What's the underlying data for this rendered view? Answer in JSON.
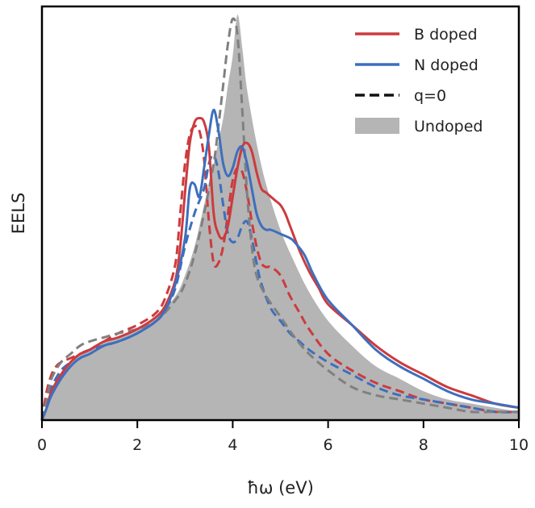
{
  "chart_data": {
    "type": "line",
    "title": "",
    "xlabel": "ħω (eV)",
    "ylabel": "EELS",
    "xlim": [
      0,
      10
    ],
    "ylim": [
      0,
      1
    ],
    "y_ticks_shown": false,
    "grid": false,
    "legend_position": "top-right",
    "x_ticks": [
      "0",
      "2",
      "4",
      "6",
      "8",
      "10"
    ],
    "colors": {
      "b_doped": "#cc3b3e",
      "n_doped": "#3d6fbe",
      "undoped": "#b5b5b5",
      "q0": "#555555"
    },
    "legend": [
      {
        "label": "B doped",
        "style": "solid",
        "color": "#cc3b3e"
      },
      {
        "label": "N doped",
        "style": "solid",
        "color": "#3d6fbe"
      },
      {
        "label": "q=0",
        "style": "dashed",
        "color": "#111111"
      },
      {
        "label": "Undoped",
        "style": "fill",
        "color": "#b5b5b5"
      }
    ],
    "series": [
      {
        "name": "Undoped",
        "kind": "fill",
        "color": "#b5b5b5",
        "x": [
          0,
          0.1,
          0.2,
          0.4,
          0.6,
          0.8,
          1.0,
          1.3,
          1.6,
          2.0,
          2.4,
          2.8,
          3.0,
          3.2,
          3.4,
          3.6,
          3.8,
          3.9,
          4.0,
          4.1,
          4.2,
          4.3,
          4.5,
          4.7,
          5.0,
          5.3,
          5.6,
          6.0,
          6.5,
          7.0,
          7.5,
          8.0,
          8.5,
          9.0,
          9.5,
          10.0
        ],
        "y": [
          0,
          0.03,
          0.07,
          0.11,
          0.14,
          0.16,
          0.17,
          0.19,
          0.2,
          0.22,
          0.25,
          0.3,
          0.35,
          0.42,
          0.52,
          0.62,
          0.73,
          0.81,
          0.88,
          0.98,
          0.9,
          0.8,
          0.67,
          0.57,
          0.46,
          0.38,
          0.31,
          0.24,
          0.18,
          0.13,
          0.1,
          0.07,
          0.05,
          0.04,
          0.03,
          0.02
        ]
      },
      {
        "name": "B doped",
        "kind": "line",
        "style": "solid",
        "color": "#cc3b3e",
        "x": [
          0,
          0.1,
          0.2,
          0.4,
          0.6,
          0.8,
          1.0,
          1.3,
          1.6,
          2.0,
          2.4,
          2.6,
          2.8,
          2.9,
          3.0,
          3.1,
          3.2,
          3.3,
          3.4,
          3.5,
          3.6,
          3.7,
          3.8,
          3.9,
          4.0,
          4.1,
          4.2,
          4.3,
          4.4,
          4.5,
          4.6,
          4.7,
          4.8,
          4.9,
          5.0,
          5.1,
          5.2,
          5.4,
          5.6,
          5.8,
          6.0,
          6.5,
          7.0,
          7.5,
          8.0,
          8.5,
          9.0,
          9.5,
          10.0
        ],
        "y": [
          0,
          0.03,
          0.07,
          0.11,
          0.14,
          0.16,
          0.17,
          0.19,
          0.2,
          0.22,
          0.25,
          0.28,
          0.34,
          0.42,
          0.55,
          0.67,
          0.72,
          0.73,
          0.72,
          0.66,
          0.5,
          0.45,
          0.44,
          0.47,
          0.54,
          0.61,
          0.66,
          0.67,
          0.65,
          0.6,
          0.56,
          0.55,
          0.54,
          0.53,
          0.52,
          0.5,
          0.47,
          0.41,
          0.36,
          0.32,
          0.28,
          0.23,
          0.18,
          0.14,
          0.11,
          0.08,
          0.06,
          0.04,
          0.03
        ]
      },
      {
        "name": "N doped",
        "kind": "line",
        "style": "solid",
        "color": "#3d6fbe",
        "x": [
          0,
          0.1,
          0.2,
          0.4,
          0.6,
          0.8,
          1.0,
          1.3,
          1.6,
          2.0,
          2.4,
          2.6,
          2.8,
          3.0,
          3.1,
          3.2,
          3.3,
          3.4,
          3.5,
          3.6,
          3.7,
          3.8,
          3.9,
          4.0,
          4.1,
          4.2,
          4.3,
          4.4,
          4.5,
          4.6,
          4.7,
          4.8,
          5.0,
          5.2,
          5.3,
          5.5,
          5.7,
          6.0,
          6.5,
          7.0,
          7.5,
          8.0,
          8.5,
          9.0,
          9.5,
          10.0
        ],
        "y": [
          0,
          0.03,
          0.06,
          0.1,
          0.13,
          0.15,
          0.16,
          0.18,
          0.19,
          0.21,
          0.24,
          0.27,
          0.33,
          0.44,
          0.56,
          0.57,
          0.54,
          0.61,
          0.69,
          0.75,
          0.7,
          0.62,
          0.59,
          0.61,
          0.65,
          0.66,
          0.62,
          0.56,
          0.5,
          0.47,
          0.46,
          0.46,
          0.45,
          0.44,
          0.43,
          0.4,
          0.35,
          0.29,
          0.23,
          0.17,
          0.13,
          0.1,
          0.07,
          0.05,
          0.04,
          0.03
        ]
      },
      {
        "name": "B doped q=0",
        "kind": "line",
        "style": "dashed",
        "color": "#cc3b3e",
        "x": [
          0,
          0.1,
          0.2,
          0.3,
          0.4,
          0.6,
          0.8,
          1.0,
          1.3,
          1.6,
          2.0,
          2.4,
          2.6,
          2.8,
          2.9,
          3.0,
          3.1,
          3.2,
          3.3,
          3.4,
          3.5,
          3.6,
          3.7,
          3.8,
          3.9,
          4.0,
          4.1,
          4.2,
          4.3,
          4.4,
          4.5,
          4.6,
          4.7,
          4.8,
          5.0,
          5.2,
          5.4,
          5.6,
          6.0,
          6.5,
          7.0,
          7.5,
          8.0,
          8.5,
          9.0,
          9.5,
          10.0
        ],
        "y": [
          0,
          0.07,
          0.11,
          0.13,
          0.14,
          0.15,
          0.16,
          0.17,
          0.19,
          0.21,
          0.23,
          0.26,
          0.3,
          0.38,
          0.5,
          0.62,
          0.69,
          0.71,
          0.7,
          0.63,
          0.48,
          0.38,
          0.38,
          0.42,
          0.5,
          0.58,
          0.61,
          0.6,
          0.55,
          0.48,
          0.42,
          0.38,
          0.37,
          0.37,
          0.35,
          0.3,
          0.26,
          0.22,
          0.16,
          0.12,
          0.09,
          0.07,
          0.05,
          0.04,
          0.03,
          0.02,
          0.02
        ]
      },
      {
        "name": "N doped q=0",
        "kind": "line",
        "style": "dashed",
        "color": "#3d6fbe",
        "x": [
          0,
          0.1,
          0.2,
          0.4,
          0.6,
          0.8,
          1.0,
          1.3,
          1.6,
          2.0,
          2.4,
          2.6,
          2.8,
          3.0,
          3.2,
          3.4,
          3.5,
          3.6,
          3.7,
          3.8,
          3.9,
          4.0,
          4.1,
          4.2,
          4.3,
          4.4,
          4.5,
          4.6,
          4.8,
          5.0,
          5.2,
          5.4,
          5.6,
          6.0,
          6.5,
          7.0,
          7.5,
          8.0,
          8.5,
          9.0,
          9.5,
          10.0
        ],
        "y": [
          0,
          0.04,
          0.08,
          0.12,
          0.14,
          0.16,
          0.17,
          0.18,
          0.19,
          0.21,
          0.24,
          0.27,
          0.32,
          0.42,
          0.5,
          0.56,
          0.62,
          0.64,
          0.6,
          0.52,
          0.45,
          0.43,
          0.44,
          0.47,
          0.48,
          0.44,
          0.38,
          0.33,
          0.27,
          0.24,
          0.21,
          0.19,
          0.17,
          0.14,
          0.11,
          0.08,
          0.06,
          0.05,
          0.04,
          0.03,
          0.02,
          0.02
        ]
      },
      {
        "name": "Undoped q=0",
        "kind": "line",
        "style": "dashed",
        "color": "#808080",
        "x": [
          0,
          0.1,
          0.2,
          0.4,
          0.6,
          0.8,
          1.0,
          1.3,
          1.6,
          2.0,
          2.4,
          2.8,
          3.0,
          3.2,
          3.4,
          3.6,
          3.7,
          3.8,
          3.9,
          4.0,
          4.1,
          4.2,
          4.3,
          4.4,
          4.5,
          4.7,
          5.0,
          5.3,
          5.6,
          6.0,
          6.5,
          7.0,
          7.5,
          8.0,
          8.5,
          9.0,
          9.5,
          10.0
        ],
        "y": [
          0,
          0.05,
          0.1,
          0.14,
          0.16,
          0.18,
          0.19,
          0.2,
          0.21,
          0.22,
          0.24,
          0.29,
          0.33,
          0.4,
          0.5,
          0.62,
          0.71,
          0.81,
          0.91,
          0.97,
          0.93,
          0.75,
          0.55,
          0.42,
          0.35,
          0.3,
          0.25,
          0.2,
          0.16,
          0.12,
          0.08,
          0.06,
          0.05,
          0.04,
          0.03,
          0.02,
          0.02,
          0.02
        ]
      }
    ]
  }
}
